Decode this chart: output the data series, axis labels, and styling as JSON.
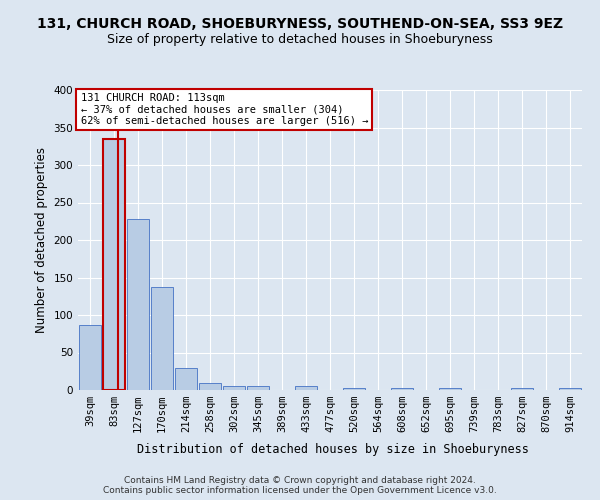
{
  "title": "131, CHURCH ROAD, SHOEBURYNESS, SOUTHEND-ON-SEA, SS3 9EZ",
  "subtitle": "Size of property relative to detached houses in Shoeburyness",
  "xlabel": "Distribution of detached houses by size in Shoeburyness",
  "ylabel": "Number of detached properties",
  "footer_line1": "Contains HM Land Registry data © Crown copyright and database right 2024.",
  "footer_line2": "Contains public sector information licensed under the Open Government Licence v3.0.",
  "categories": [
    "39sqm",
    "83sqm",
    "127sqm",
    "170sqm",
    "214sqm",
    "258sqm",
    "302sqm",
    "345sqm",
    "389sqm",
    "433sqm",
    "477sqm",
    "520sqm",
    "564sqm",
    "608sqm",
    "652sqm",
    "695sqm",
    "739sqm",
    "783sqm",
    "827sqm",
    "870sqm",
    "914sqm"
  ],
  "values": [
    87,
    335,
    228,
    137,
    29,
    10,
    5,
    5,
    0,
    5,
    0,
    3,
    0,
    3,
    0,
    3,
    0,
    0,
    3,
    0,
    3
  ],
  "bar_color": "#b8cce4",
  "bar_edge_color": "#4472c4",
  "highlight_bar_index": 1,
  "highlight_bar_edge_color": "#c00000",
  "annotation_box_text": "131 CHURCH ROAD: 113sqm\n← 37% of detached houses are smaller (304)\n62% of semi-detached houses are larger (516) →",
  "ylim": [
    0,
    400
  ],
  "yticks": [
    0,
    50,
    100,
    150,
    200,
    250,
    300,
    350,
    400
  ],
  "background_color": "#dce6f1",
  "axes_background_color": "#dce6f1",
  "grid_color": "#ffffff",
  "title_fontsize": 10,
  "subtitle_fontsize": 9,
  "tick_fontsize": 7.5,
  "label_fontsize": 8.5,
  "footer_fontsize": 6.5
}
